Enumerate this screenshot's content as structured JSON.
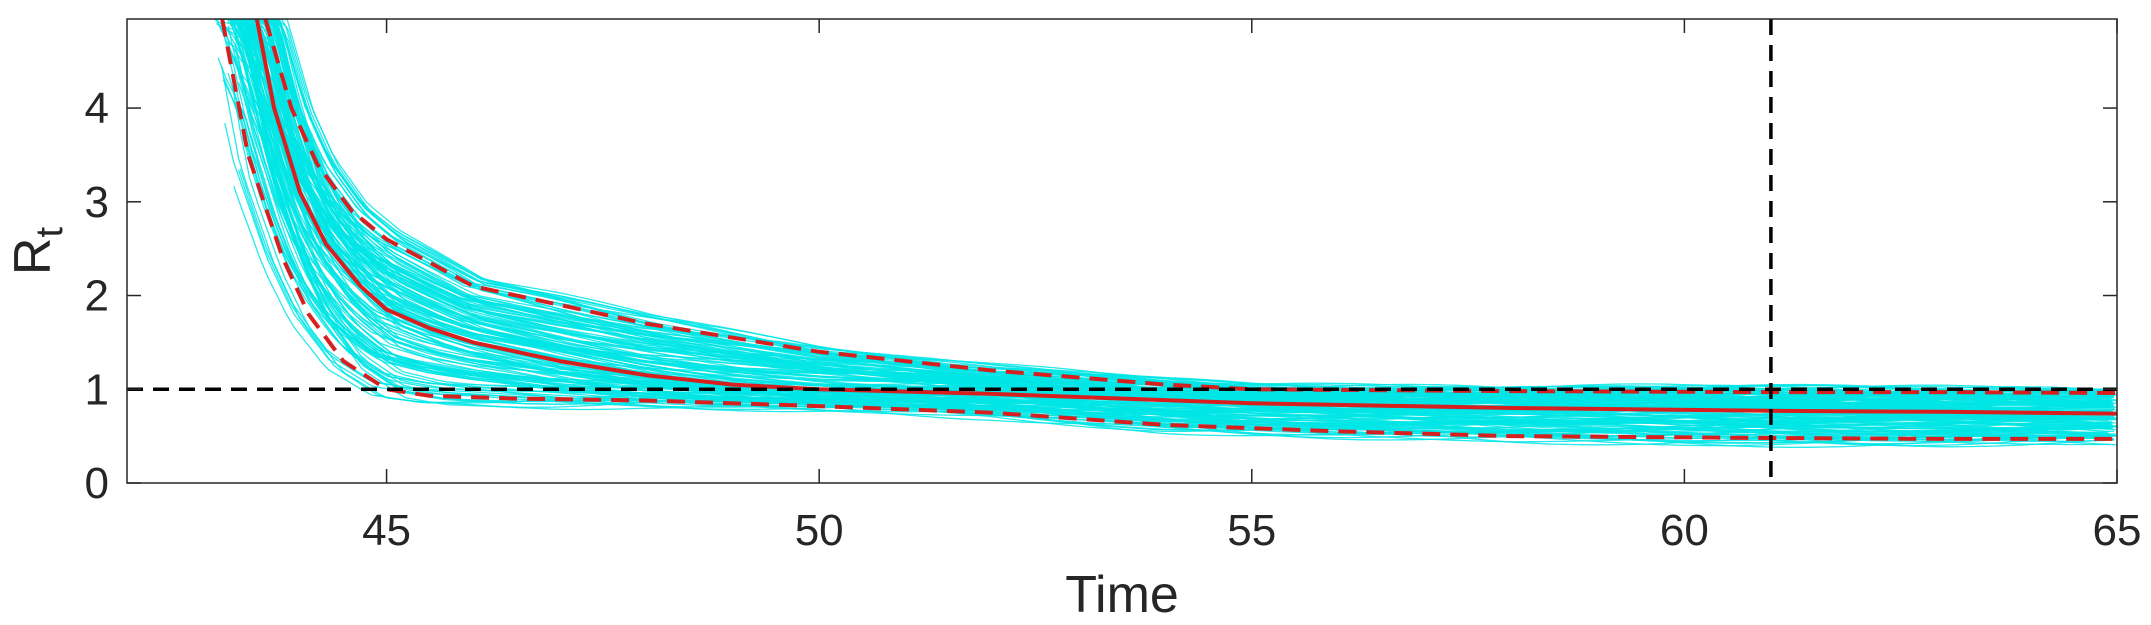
{
  "chart_data": {
    "type": "line",
    "xlabel": "Time",
    "ylabel": "R",
    "ylabel_subscript": "t",
    "xlim": [
      42,
      65
    ],
    "ylim": [
      0,
      4.95
    ],
    "xticks": [
      "45",
      "50",
      "55",
      "60",
      "65"
    ],
    "yticks": [
      "0",
      "1",
      "2",
      "3",
      "4"
    ],
    "grid": false,
    "reference_lines": {
      "horizontal_y": 1,
      "vertical_x": 61
    },
    "sample_paths": {
      "count": 150,
      "color": "#00e5e5",
      "x_range": [
        43,
        65
      ]
    },
    "series": [
      {
        "role": "median",
        "style": "solid",
        "color": "#d62020",
        "x": [
          43.5,
          43.7,
          44.0,
          44.3,
          44.7,
          45.0,
          45.5,
          46.0,
          47.0,
          48.0,
          49.0,
          50.0,
          52.0,
          55.0,
          58.0,
          61.0,
          63.0,
          65.0
        ],
        "y": [
          4.95,
          4.0,
          3.1,
          2.55,
          2.1,
          1.85,
          1.65,
          1.5,
          1.3,
          1.15,
          1.05,
          1.0,
          0.95,
          0.85,
          0.8,
          0.77,
          0.76,
          0.74
        ]
      },
      {
        "role": "upper-bound",
        "style": "dashed",
        "color": "#d62020",
        "x": [
          43.6,
          43.9,
          44.2,
          44.6,
          45.0,
          45.5,
          46.0,
          47.0,
          48.0,
          49.0,
          50.0,
          52.0,
          54.0,
          55.0,
          58.0,
          61.0,
          63.0,
          65.0
        ],
        "y": [
          4.95,
          4.0,
          3.4,
          2.9,
          2.6,
          2.35,
          2.1,
          1.9,
          1.7,
          1.55,
          1.4,
          1.2,
          1.05,
          1.0,
          0.98,
          0.97,
          0.97,
          0.96
        ]
      },
      {
        "role": "lower-bound",
        "style": "dashed",
        "color": "#d62020",
        "x": [
          43.1,
          43.4,
          43.8,
          44.1,
          44.5,
          45.0,
          45.5,
          46.5,
          48.0,
          50.0,
          52.0,
          54.0,
          56.0,
          58.0,
          61.0,
          63.0,
          65.0
        ],
        "y": [
          4.95,
          3.5,
          2.4,
          1.8,
          1.3,
          1.0,
          0.93,
          0.9,
          0.88,
          0.82,
          0.75,
          0.62,
          0.55,
          0.5,
          0.48,
          0.47,
          0.47
        ]
      }
    ]
  }
}
